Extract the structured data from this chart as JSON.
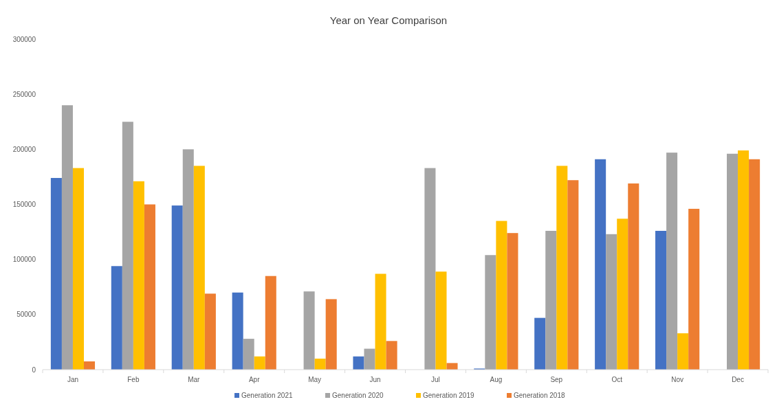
{
  "chart_data": {
    "type": "bar",
    "title": "Year on Year Comparison",
    "categories": [
      "Jan",
      "Feb",
      "Mar",
      "Apr",
      "May",
      "Jun",
      "Jul",
      "Aug",
      "Sep",
      "Oct",
      "Nov",
      "Dec"
    ],
    "series": [
      {
        "name": "Generation 2021",
        "color": "#4472c4",
        "values": [
          174000,
          94000,
          149000,
          70000,
          null,
          12000,
          null,
          1000,
          47000,
          191000,
          126000,
          null
        ]
      },
      {
        "name": "Generation 2020",
        "color": "#a5a5a5",
        "values": [
          240000,
          225000,
          200000,
          28000,
          71000,
          19000,
          183000,
          104000,
          126000,
          123000,
          197000,
          196000
        ]
      },
      {
        "name": "Generation 2019",
        "color": "#ffc000",
        "values": [
          183000,
          171000,
          185000,
          12000,
          10000,
          87000,
          89000,
          135000,
          185000,
          137000,
          33000,
          199000
        ]
      },
      {
        "name": "Generation 2018",
        "color": "#ed7d31",
        "values": [
          7500,
          150000,
          69000,
          85000,
          64000,
          26000,
          6000,
          124000,
          172000,
          169000,
          146000,
          191000
        ]
      }
    ],
    "ylim": [
      0,
      300000
    ],
    "yticks": [
      0,
      50000,
      100000,
      150000,
      200000,
      250000,
      300000
    ],
    "grid": false,
    "legend": "bottom"
  }
}
